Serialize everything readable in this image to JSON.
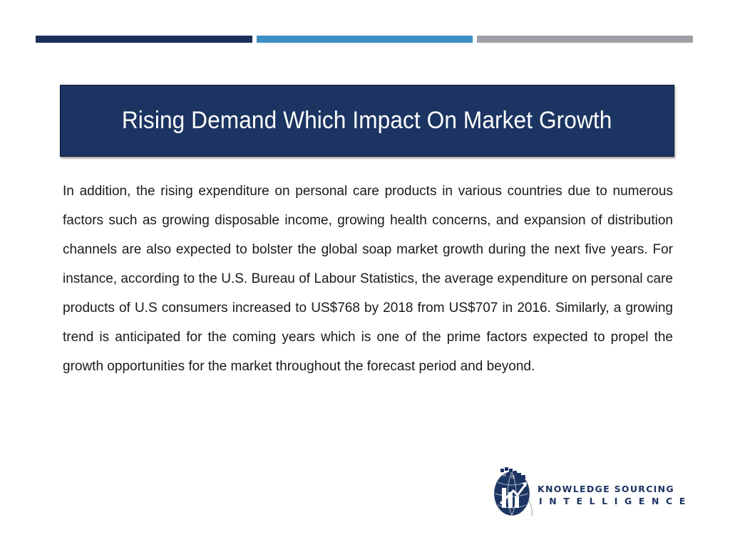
{
  "colors": {
    "bar_navy": "#1b2f5b",
    "bar_blue": "#3d8fc4",
    "bar_gray": "#9da1a6",
    "title_bg": "#1c3461",
    "logo_navy": "#1c3461"
  },
  "header": {
    "title": "Rising Demand Which Impact On Market Growth"
  },
  "content": {
    "paragraph": "In addition, the rising expenditure on personal care products in various countries due to numerous factors such as growing disposable income, growing health concerns, and expansion of distribution channels are also expected to bolster the global soap market growth during the next five years. For instance, according to the U.S. Bureau of Labour Statistics, the average expenditure on personal care products of U.S consumers increased to US$768 by 2018 from US$707 in 2016. Similarly, a growing trend is anticipated for the coming years which is one of the prime factors expected to propel the growth opportunities for the market throughout the forecast period and beyond."
  },
  "logo": {
    "icon": "globe-building-icon",
    "line1": "KNOWLEDGE SOURCING",
    "line2": "INTELLIGENCE"
  }
}
